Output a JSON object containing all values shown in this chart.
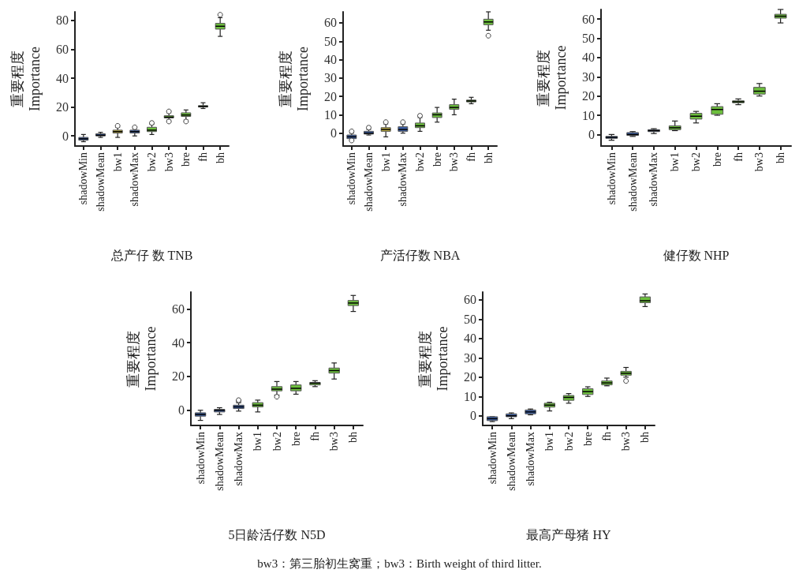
{
  "chart_data": [
    {
      "type": "box",
      "xlabel": "总产仔 数 TNB",
      "ylabel": "重要程度\nImportance",
      "categories": [
        "shadowMin",
        "shadowMean",
        "bw1",
        "shadowMax",
        "bw2",
        "bw3",
        "bre",
        "fh",
        "bh"
      ],
      "ylim": [
        -7,
        86
      ],
      "yticks": [
        0,
        20,
        40,
        60,
        80
      ],
      "grid": false,
      "marker": "circle",
      "colors": [
        "#3a5fa8",
        "#3a5fa8",
        "#c8b840",
        "#3a5fa8",
        "#6cbf3c",
        "#6cbf3c",
        "#6cbf3c",
        "#6cbf3c",
        "#6cbf3c"
      ],
      "boxes": [
        {
          "low": -4,
          "q1": -3,
          "median": -2,
          "q3": -1,
          "high": 1
        },
        {
          "low": -1,
          "q1": 0,
          "median": 0.5,
          "q3": 1.5,
          "high": 2.5
        },
        {
          "low": -1,
          "q1": 2,
          "median": 3,
          "q3": 4,
          "high": 6,
          "outliers": [
            7
          ]
        },
        {
          "low": 0,
          "q1": 2,
          "median": 3,
          "q3": 4,
          "high": 5,
          "outliers": [
            6
          ]
        },
        {
          "low": 1,
          "q1": 3,
          "median": 4,
          "q3": 6,
          "high": 8,
          "outliers": [
            9
          ]
        },
        {
          "low": 11,
          "q1": 12.5,
          "median": 13,
          "q3": 14,
          "high": 16,
          "outliers": [
            10,
            17
          ]
        },
        {
          "low": 11,
          "q1": 13.5,
          "median": 14.5,
          "q3": 16,
          "high": 18,
          "outliers": [
            10
          ]
        },
        {
          "low": 19,
          "q1": 20,
          "median": 20.5,
          "q3": 21,
          "high": 23
        },
        {
          "low": 69,
          "q1": 74,
          "median": 76,
          "q3": 78,
          "high": 82,
          "outliers": [
            84
          ]
        }
      ]
    },
    {
      "type": "box",
      "xlabel": "产活仔数 NBA",
      "ylabel": "重要程度\nImportance",
      "categories": [
        "shadowMin",
        "shadowMean",
        "bw1",
        "shadowMax",
        "bw2",
        "bre",
        "bw3",
        "fh",
        "bh"
      ],
      "ylim": [
        -7,
        66
      ],
      "yticks": [
        0,
        10,
        20,
        30,
        40,
        50,
        60
      ],
      "grid": false,
      "marker": "circle",
      "colors": [
        "#3a5fa8",
        "#3a5fa8",
        "#c8b840",
        "#3a5fa8",
        "#6cbf3c",
        "#6cbf3c",
        "#6cbf3c",
        "#6cbf3c",
        "#6cbf3c"
      ],
      "boxes": [
        {
          "low": -3,
          "q1": -3,
          "median": -2,
          "q3": -1,
          "high": 0,
          "outliers": [
            -4,
            1
          ]
        },
        {
          "low": -1,
          "q1": -0.5,
          "median": 0,
          "q3": 1,
          "high": 2,
          "outliers": [
            3
          ]
        },
        {
          "low": -2,
          "q1": 1,
          "median": 2,
          "q3": 3,
          "high": 5,
          "outliers": [
            6
          ]
        },
        {
          "low": 0,
          "q1": 1,
          "median": 2,
          "q3": 3.5,
          "high": 5,
          "outliers": [
            6
          ]
        },
        {
          "low": 1,
          "q1": 3,
          "median": 4,
          "q3": 5.5,
          "high": 8.5,
          "outliers": [
            9.5
          ]
        },
        {
          "low": 6,
          "q1": 8.5,
          "median": 10,
          "q3": 11,
          "high": 14
        },
        {
          "low": 10,
          "q1": 13,
          "median": 14,
          "q3": 15.5,
          "high": 18.5
        },
        {
          "low": 16,
          "q1": 17,
          "median": 17.5,
          "q3": 18,
          "high": 19.5
        },
        {
          "low": 56,
          "q1": 59,
          "median": 60.5,
          "q3": 62,
          "high": 66,
          "outliers": [
            53
          ]
        }
      ]
    },
    {
      "type": "box",
      "xlabel": "健仔数 NHP",
      "ylabel": "重要程度\nImportance",
      "categories": [
        "shadowMin",
        "shadowMean",
        "shadowMax",
        "bw1",
        "bw2",
        "bre",
        "fh",
        "bw3",
        "bh"
      ],
      "ylim": [
        -6,
        65
      ],
      "yticks": [
        0,
        10,
        20,
        30,
        40,
        50,
        60
      ],
      "grid": false,
      "marker": "circle",
      "colors": [
        "#3a5fa8",
        "#3a5fa8",
        "#3a5fa8",
        "#6cbf3c",
        "#6cbf3c",
        "#6cbf3c",
        "#6cbf3c",
        "#6cbf3c",
        "#6cbf3c"
      ],
      "boxes": [
        {
          "low": -3,
          "q1": -2,
          "median": -1.5,
          "q3": -1,
          "high": 0
        },
        {
          "low": -1,
          "q1": -0.5,
          "median": 0,
          "q3": 1,
          "high": 1.5
        },
        {
          "low": 0.5,
          "q1": 1.5,
          "median": 2,
          "q3": 2.5,
          "high": 3
        },
        {
          "low": 2,
          "q1": 2.5,
          "median": 3.5,
          "q3": 4.5,
          "high": 7
        },
        {
          "low": 6,
          "q1": 8,
          "median": 9.5,
          "q3": 11,
          "high": 12
        },
        {
          "low": 10,
          "q1": 10.5,
          "median": 13,
          "q3": 14.5,
          "high": 16
        },
        {
          "low": 15.5,
          "q1": 16.5,
          "median": 17,
          "q3": 17.5,
          "high": 18.5
        },
        {
          "low": 20,
          "q1": 21,
          "median": 22.5,
          "q3": 24.5,
          "high": 26.5
        },
        {
          "low": 58,
          "q1": 60.5,
          "median": 61.5,
          "q3": 62.5,
          "high": 65
        }
      ]
    },
    {
      "type": "box",
      "xlabel": "5日龄活仔数 N5D",
      "ylabel": "重要程度\nImportance",
      "categories": [
        "shadowMin",
        "shadowMean",
        "shadowMax",
        "bw1",
        "bw2",
        "bre",
        "fh",
        "bw3",
        "bh"
      ],
      "ylim": [
        -9,
        70
      ],
      "yticks": [
        0,
        20,
        40,
        60
      ],
      "grid": false,
      "marker": "circle",
      "colors": [
        "#3a5fa8",
        "#3a5fa8",
        "#3a5fa8",
        "#6cbf3c",
        "#6cbf3c",
        "#6cbf3c",
        "#6cbf3c",
        "#6cbf3c",
        "#6cbf3c"
      ],
      "boxes": [
        {
          "low": -6,
          "q1": -3.5,
          "median": -2.5,
          "q3": -1.5,
          "high": 0
        },
        {
          "low": -2.5,
          "q1": -1,
          "median": 0,
          "q3": 0.5,
          "high": 1.5
        },
        {
          "low": -0.5,
          "q1": 1,
          "median": 2,
          "q3": 3,
          "high": 4.5,
          "outliers": [
            5.5,
            6
          ]
        },
        {
          "low": -1,
          "q1": 2,
          "median": 3,
          "q3": 4.5,
          "high": 6
        },
        {
          "low": 9,
          "q1": 11.5,
          "median": 12.5,
          "q3": 14,
          "high": 17,
          "outliers": [
            8
          ]
        },
        {
          "low": 9.5,
          "q1": 11.5,
          "median": 13,
          "q3": 15,
          "high": 17
        },
        {
          "low": 14,
          "q1": 15,
          "median": 16,
          "q3": 16.5,
          "high": 17.5
        },
        {
          "low": 18.5,
          "q1": 22,
          "median": 23.5,
          "q3": 25,
          "high": 28
        },
        {
          "low": 58.5,
          "q1": 62,
          "median": 63.5,
          "q3": 65,
          "high": 68
        }
      ]
    },
    {
      "type": "box",
      "xlabel": "最高产母猪 HY",
      "ylabel": "重要程度\nImportance",
      "categories": [
        "shadowMin",
        "shadowMean",
        "shadowMax",
        "bw1",
        "bw2",
        "bre",
        "fh",
        "bw3",
        "bh"
      ],
      "ylim": [
        -5,
        64
      ],
      "yticks": [
        0,
        10,
        20,
        30,
        40,
        50,
        60
      ],
      "grid": false,
      "marker": "circle",
      "colors": [
        "#3a5fa8",
        "#3a5fa8",
        "#3a5fa8",
        "#6cbf3c",
        "#6cbf3c",
        "#6cbf3c",
        "#6cbf3c",
        "#6cbf3c",
        "#6cbf3c"
      ],
      "annotations": [
        "bw3：第三胎初生窝重；bw3：Birth weight of third litter."
      ],
      "boxes": [
        {
          "low": -3,
          "q1": -2.5,
          "median": -1.5,
          "q3": -0.5,
          "high": -0.5
        },
        {
          "low": -1.5,
          "q1": -0.5,
          "median": 0,
          "q3": 1,
          "high": 1.5
        },
        {
          "low": 0.5,
          "q1": 1,
          "median": 2,
          "q3": 3,
          "high": 3.5
        },
        {
          "low": 2.5,
          "q1": 4.5,
          "median": 5.5,
          "q3": 6.5,
          "high": 7
        },
        {
          "low": 6.5,
          "q1": 8,
          "median": 9.5,
          "q3": 10.5,
          "high": 11.5
        },
        {
          "low": 10,
          "q1": 11,
          "median": 12.5,
          "q3": 14,
          "high": 15
        },
        {
          "low": 15.5,
          "q1": 16,
          "median": 17,
          "q3": 18,
          "high": 19.5
        },
        {
          "low": 20,
          "q1": 21,
          "median": 22,
          "q3": 23,
          "high": 25,
          "outliers": [
            18
          ]
        },
        {
          "low": 56.5,
          "q1": 58.5,
          "median": 59.5,
          "q3": 61.5,
          "high": 63
        }
      ]
    }
  ]
}
